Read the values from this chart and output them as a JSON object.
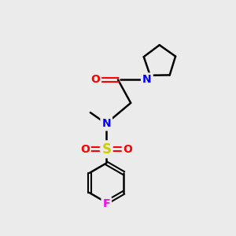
{
  "background_color": "#ebebeb",
  "atom_colors": {
    "C": "#000000",
    "N": "#0000ff",
    "O": "#ff0000",
    "S": "#cccc00",
    "F": "#ff00ff"
  },
  "bond_color": "#000000",
  "bond_width": 1.8,
  "figsize": [
    3.0,
    3.0
  ],
  "dpi": 100,
  "xlim": [
    0,
    10
  ],
  "ylim": [
    0,
    10
  ]
}
